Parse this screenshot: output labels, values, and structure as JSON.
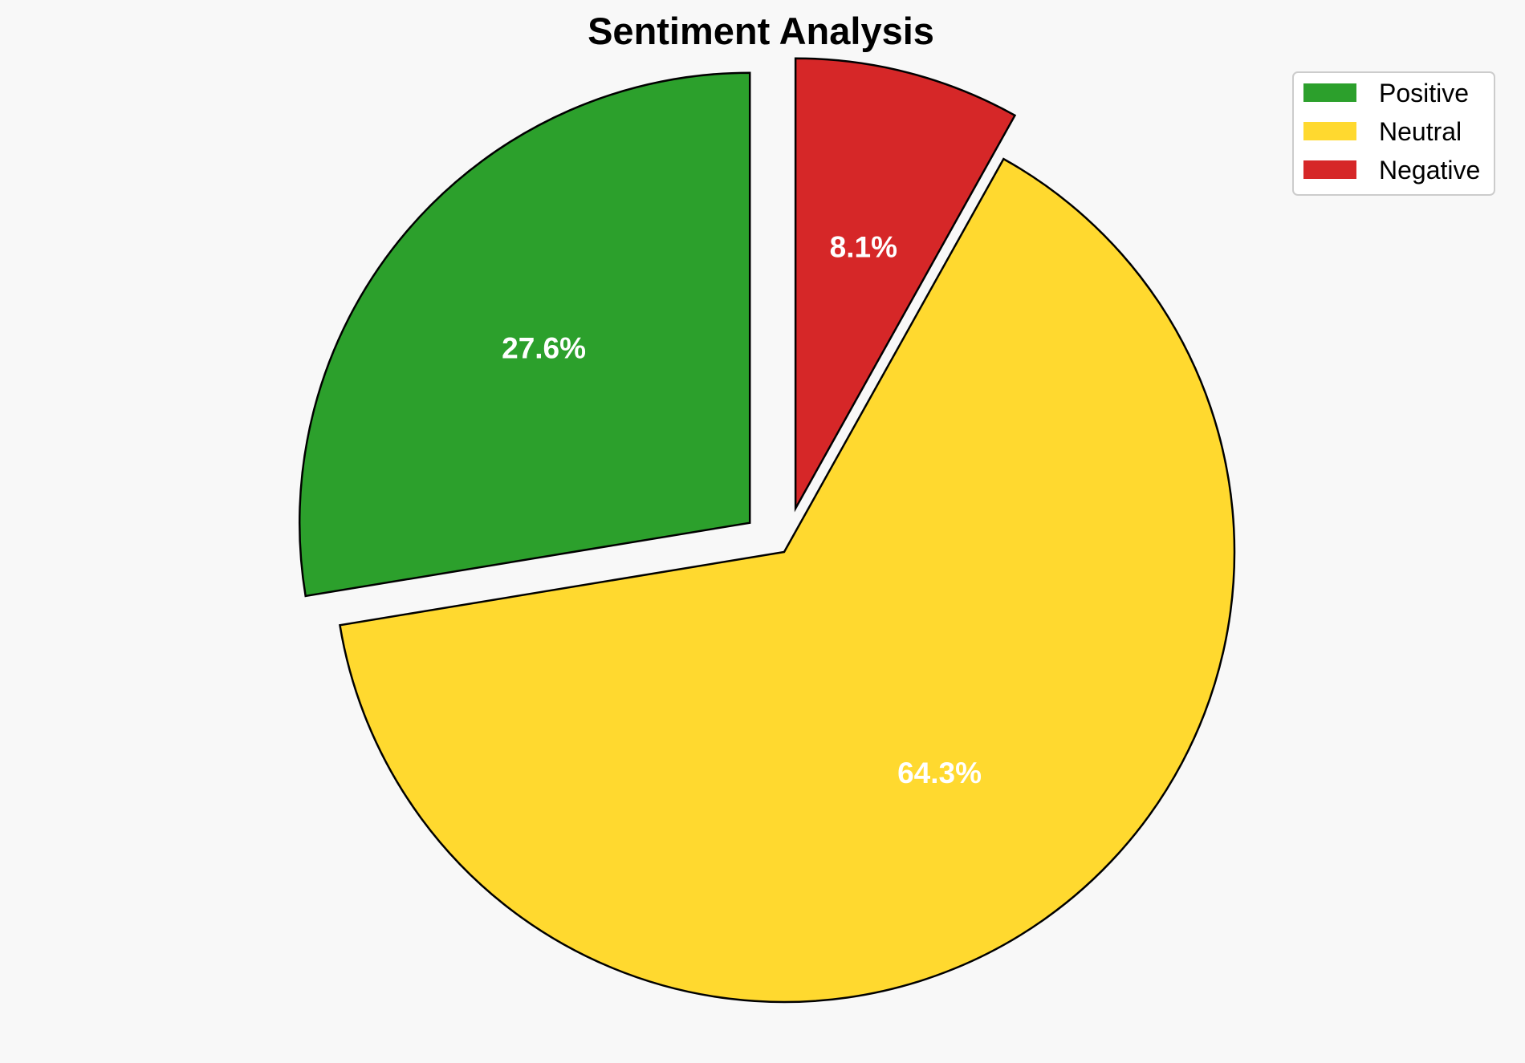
{
  "chart_data": {
    "type": "pie",
    "title": "Sentiment Analysis",
    "categories": [
      "Positive",
      "Neutral",
      "Negative"
    ],
    "values": [
      27.6,
      64.3,
      8.1
    ],
    "labels": [
      "27.6%",
      "64.3%",
      "8.1%"
    ],
    "colors": [
      "#2ca02c",
      "#ffd92f",
      "#d62728"
    ],
    "exploded": [
      true,
      false,
      true
    ],
    "start_angle_deg": 90,
    "legend": {
      "placement": "top-right",
      "entries": [
        "Positive",
        "Neutral",
        "Negative"
      ]
    }
  }
}
